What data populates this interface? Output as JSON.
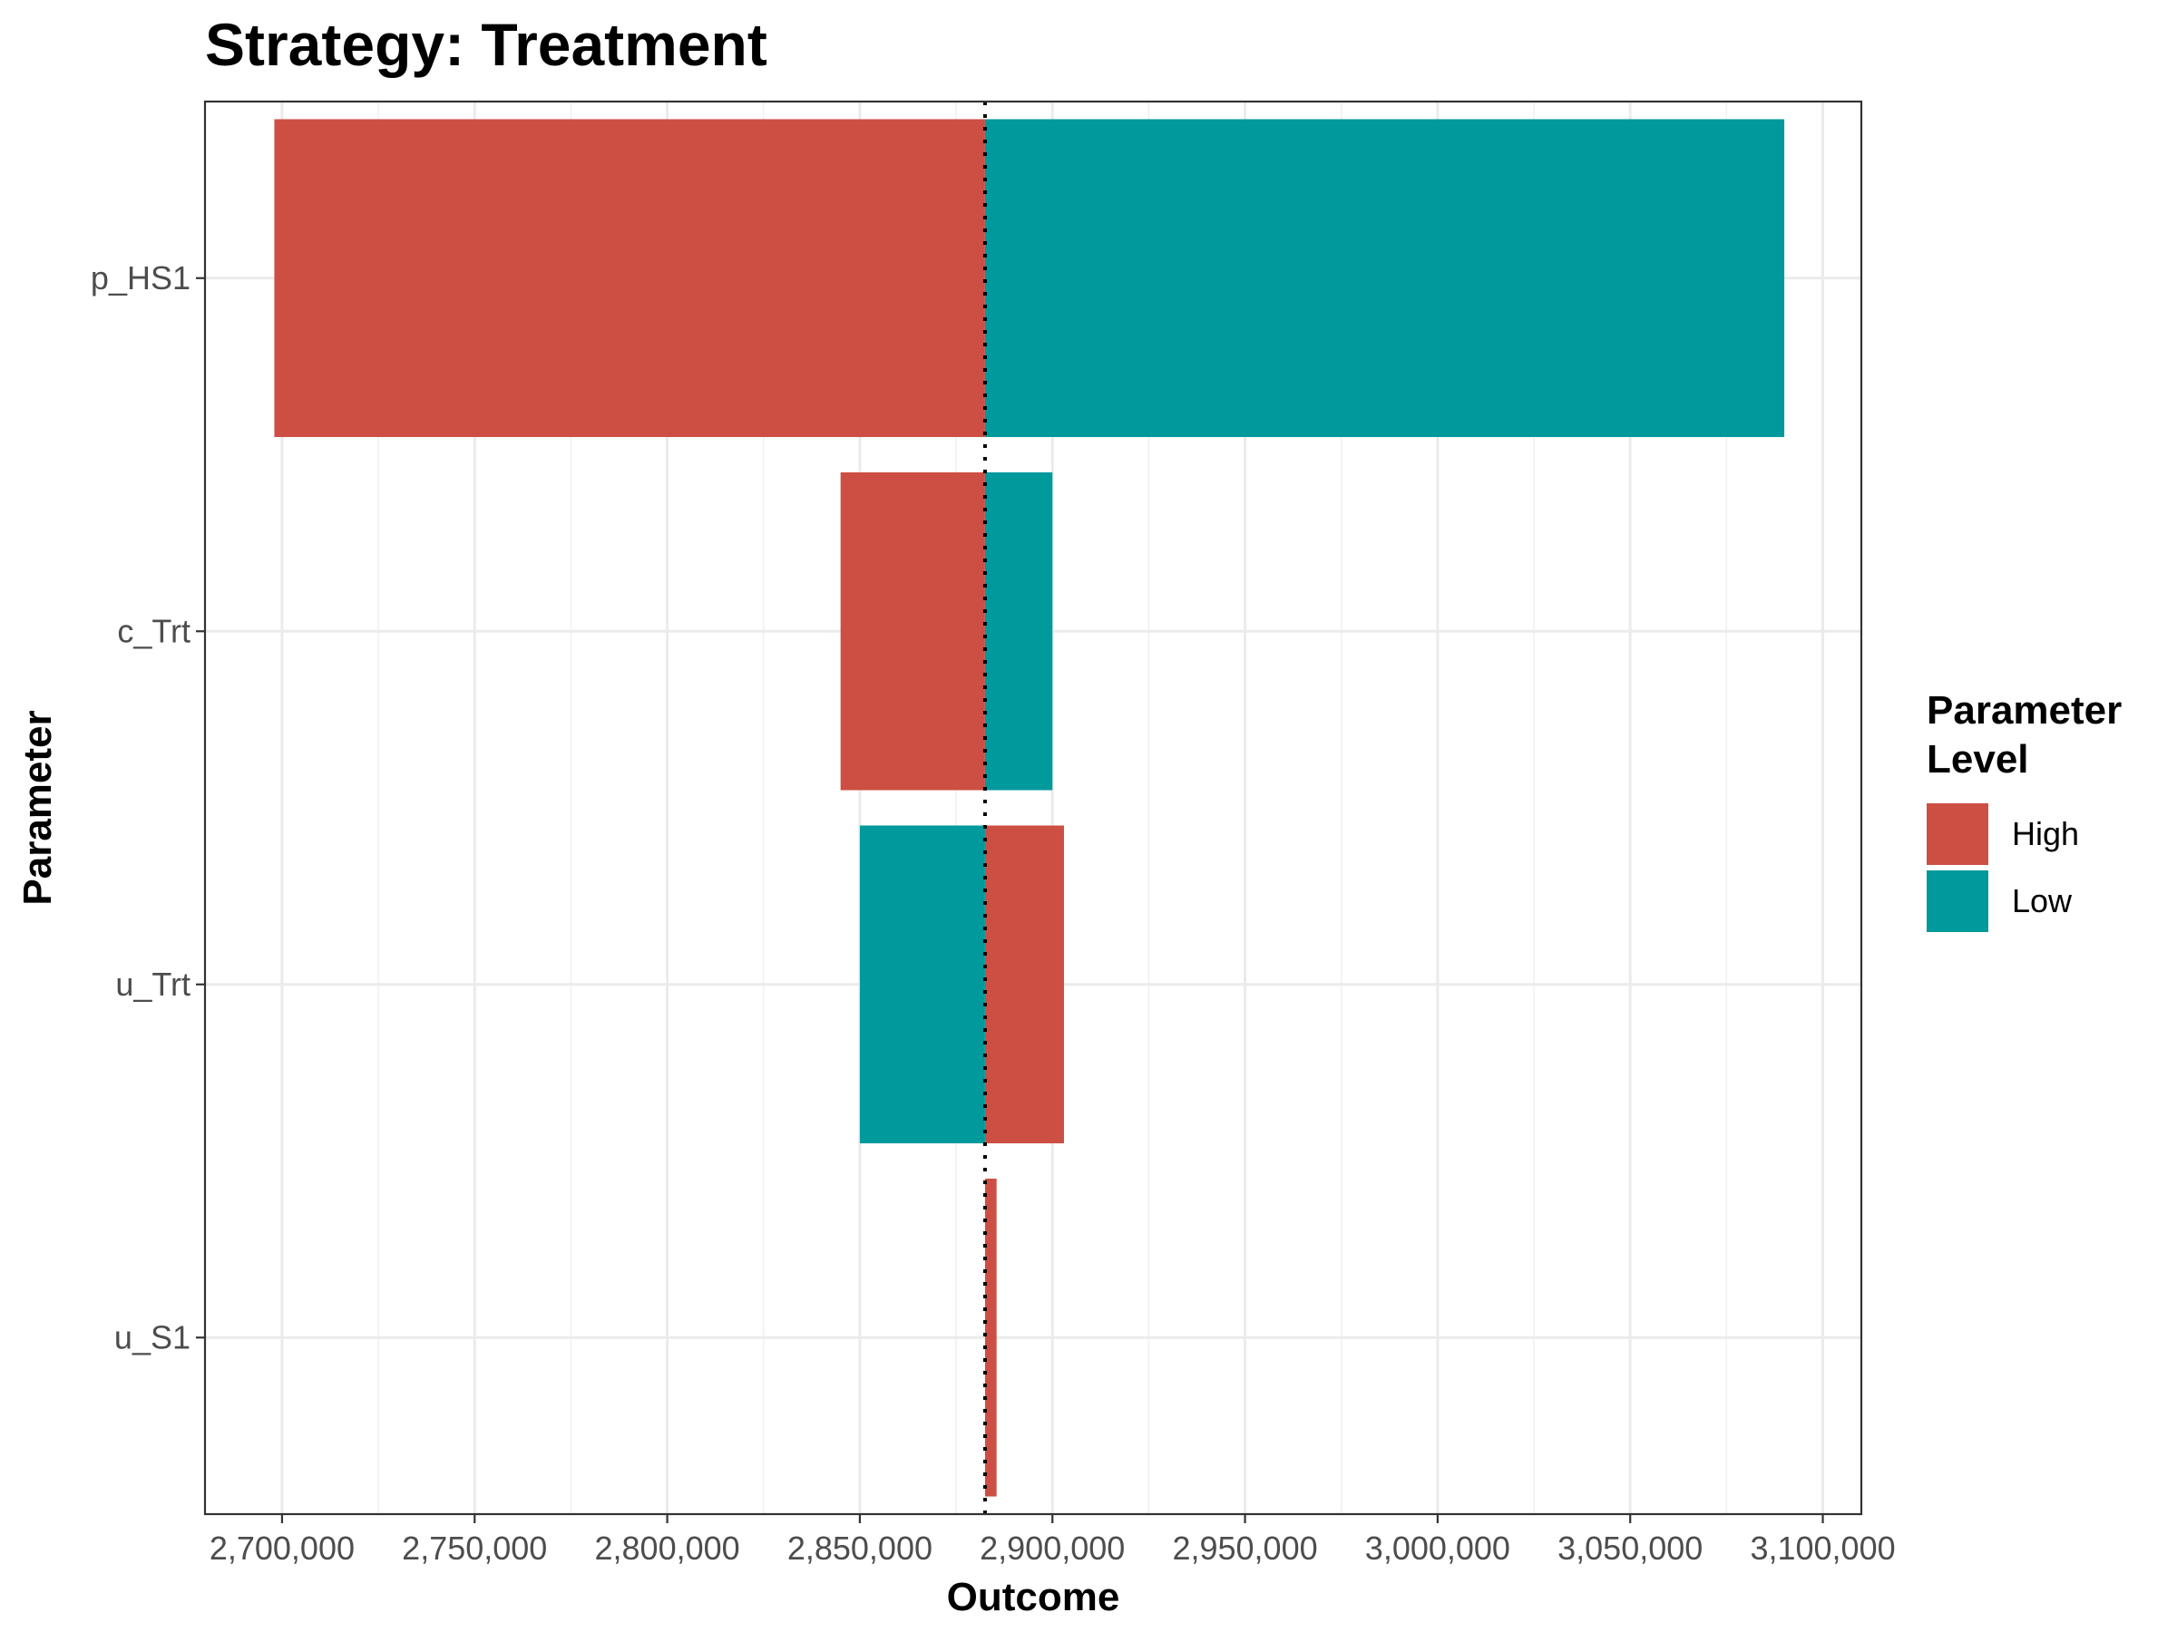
{
  "chart_data": {
    "type": "bar",
    "orientation": "horizontal",
    "subtype": "tornado",
    "title": "Strategy: Treatment",
    "xlabel": "Outcome",
    "ylabel": "Parameter",
    "xlim": [
      2680000,
      3110000
    ],
    "x_ticks": [
      2700000,
      2750000,
      2800000,
      2850000,
      2900000,
      2950000,
      3000000,
      3050000,
      3100000
    ],
    "x_tick_labels": [
      "2,700,000",
      "2,750,000",
      "2,800,000",
      "2,850,000",
      "2,900,000",
      "2,950,000",
      "3,000,000",
      "3,050,000",
      "3,100,000"
    ],
    "base_value": 2882500,
    "base_line_style": "dotted",
    "categories": [
      "p_HS1",
      "c_Trt",
      "u_Trt",
      "u_S1"
    ],
    "series": [
      {
        "name": "High",
        "color": "#CD4F44",
        "values": [
          2698000,
          2845000,
          2903000,
          2885500
        ]
      },
      {
        "name": "Low",
        "color": "#00999C",
        "values": [
          3090000,
          2900000,
          2850000,
          2882500
        ]
      }
    ],
    "legend": {
      "title_lines": [
        "Parameter",
        "Level"
      ],
      "position": "right"
    },
    "grid": true,
    "theme": "bw"
  }
}
